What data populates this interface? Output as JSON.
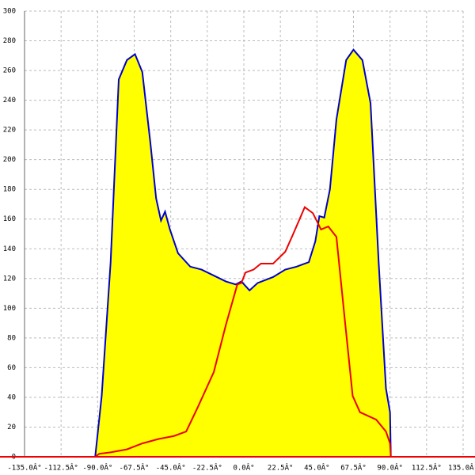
{
  "chart_data": {
    "type": "area",
    "xlim": [
      -135,
      135
    ],
    "ylim": [
      0,
      300
    ],
    "xticks": [
      {
        "value": -135,
        "label": "-135.0Â°"
      },
      {
        "value": -112.5,
        "label": "-112.5Â°"
      },
      {
        "value": -90,
        "label": "-90.0Â°"
      },
      {
        "value": -67.5,
        "label": "-67.5Â°"
      },
      {
        "value": -45,
        "label": "-45.0Â°"
      },
      {
        "value": -22.5,
        "label": "-22.5Â°"
      },
      {
        "value": 0,
        "label": "0.0Â°"
      },
      {
        "value": 22.5,
        "label": "22.5Â°"
      },
      {
        "value": 45,
        "label": "45.0Â°"
      },
      {
        "value": 67.5,
        "label": "67.5Â°"
      },
      {
        "value": 90,
        "label": "90.0Â°"
      },
      {
        "value": 112.5,
        "label": "112.5Â°"
      },
      {
        "value": 135,
        "label": "135.0Â°"
      }
    ],
    "yticks": [
      0,
      20,
      40,
      60,
      80,
      100,
      120,
      140,
      160,
      180,
      200,
      220,
      240,
      260,
      280,
      300
    ],
    "grid": true,
    "series": [
      {
        "color": "#0000cc",
        "fill": "#ffff00",
        "x": [
          -91.5,
          -87.5,
          -82,
          -77,
          -72,
          -67,
          -62.5,
          -57.5,
          -54,
          -51,
          -48.5,
          -45.5,
          -40.5,
          -33,
          -26,
          -18.5,
          -11,
          -5,
          -1.5,
          3.5,
          8.5,
          18,
          25.5,
          32.5,
          40,
          44,
          46.5,
          49.5,
          53,
          57,
          63,
          67.5,
          73,
          78,
          83,
          87.5,
          90,
          90.5
        ],
        "values": [
          0,
          41,
          131,
          254,
          267,
          271,
          259,
          211,
          174,
          159,
          165,
          153,
          137,
          128,
          126,
          122,
          118,
          116,
          118,
          112,
          117,
          121,
          126,
          128,
          131,
          145,
          162,
          161,
          180,
          227,
          267,
          274,
          267,
          238,
          131,
          46,
          30,
          0
        ]
      },
      {
        "color": "#ee0000",
        "x": [
          -91.5,
          -89,
          -82,
          -72,
          -62.5,
          -52.5,
          -43,
          -35.5,
          -28.5,
          -18.5,
          -11,
          -4,
          -1.5,
          1,
          6,
          10.5,
          18,
          25.5,
          30,
          37.5,
          42.5,
          47.5,
          52,
          57,
          62,
          67,
          71.5,
          81.5,
          87.5,
          90,
          90.5
        ],
        "values": [
          0,
          2,
          3,
          5,
          9,
          12,
          14,
          17,
          33,
          57,
          89,
          116,
          117,
          124,
          126,
          130,
          130,
          138,
          149,
          168,
          164,
          153,
          155,
          148,
          94,
          41,
          30,
          25,
          17,
          9,
          0
        ]
      }
    ]
  }
}
